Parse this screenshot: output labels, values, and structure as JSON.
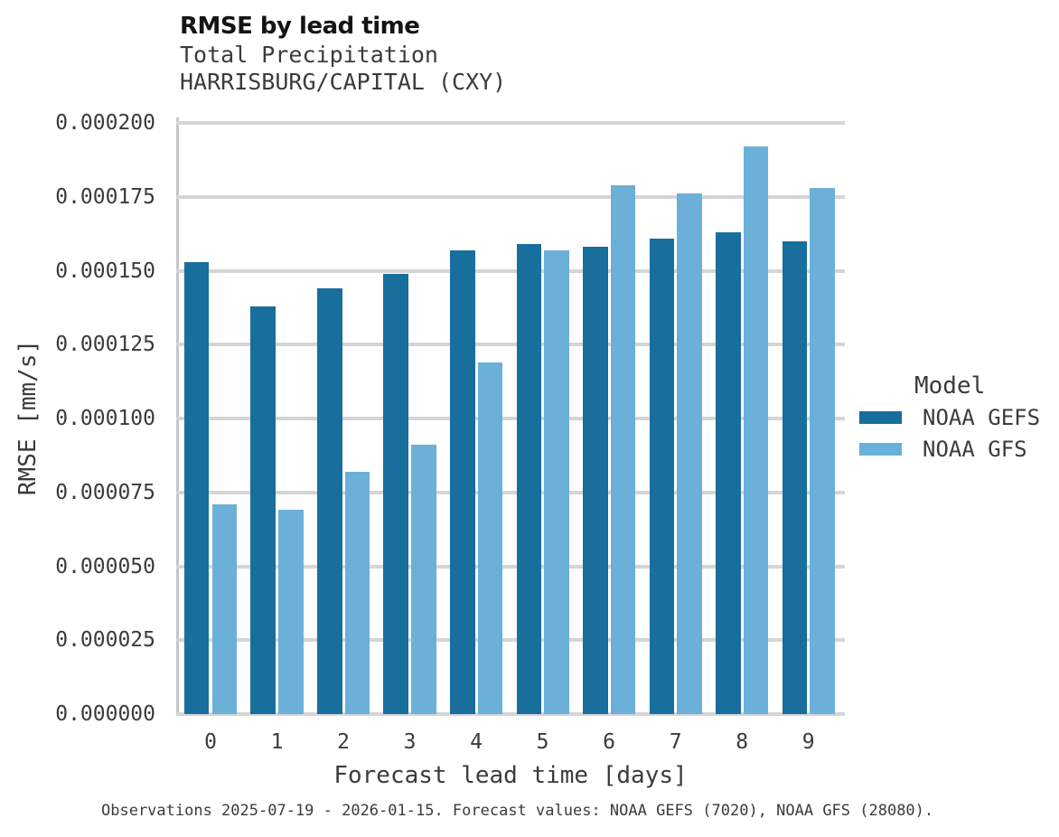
{
  "chart_data": {
    "type": "bar",
    "title": "RMSE by lead time",
    "subtitle_line1": "Total Precipitation",
    "subtitle_line2": "HARRISBURG/CAPITAL (CXY)",
    "xlabel": "Forecast lead time [days]",
    "ylabel": "RMSE [mm/s]",
    "categories": [
      "0",
      "1",
      "2",
      "3",
      "4",
      "5",
      "6",
      "7",
      "8",
      "9"
    ],
    "series": [
      {
        "name": "NOAA GEFS",
        "color": "#186e9c",
        "values": [
          0.000153,
          0.000138,
          0.000144,
          0.000149,
          0.000157,
          0.000159,
          0.000158,
          0.000161,
          0.000163,
          0.00016
        ]
      },
      {
        "name": "NOAA GFS",
        "color": "#6bb0d9",
        "values": [
          7.1e-05,
          6.9e-05,
          8.2e-05,
          9.1e-05,
          0.000119,
          0.000157,
          0.000179,
          0.000176,
          0.000192,
          0.000178
        ]
      }
    ],
    "ylim": [
      0,
      0.0002
    ],
    "ytick_values": [
      0,
      2.5e-05,
      5e-05,
      7.5e-05,
      0.0001,
      0.000125,
      0.00015,
      0.000175,
      0.0002
    ],
    "ytick_labels": [
      "0.000000",
      "0.000025",
      "0.000050",
      "0.000075",
      "0.000100",
      "0.000125",
      "0.000150",
      "0.000175",
      "0.000200"
    ],
    "grid": true,
    "legend": {
      "title": "Model",
      "position": "right"
    },
    "caption": "Observations 2025-07-19 - 2026-01-15. Forecast values: NOAA GEFS (7020), NOAA GFS (28080)."
  },
  "colors": {
    "background": "#ffffff",
    "gridline": "#d5d5d5",
    "spine": "#c6c6c6",
    "title_text": "#141414",
    "body_text": "#3b3b3b"
  }
}
